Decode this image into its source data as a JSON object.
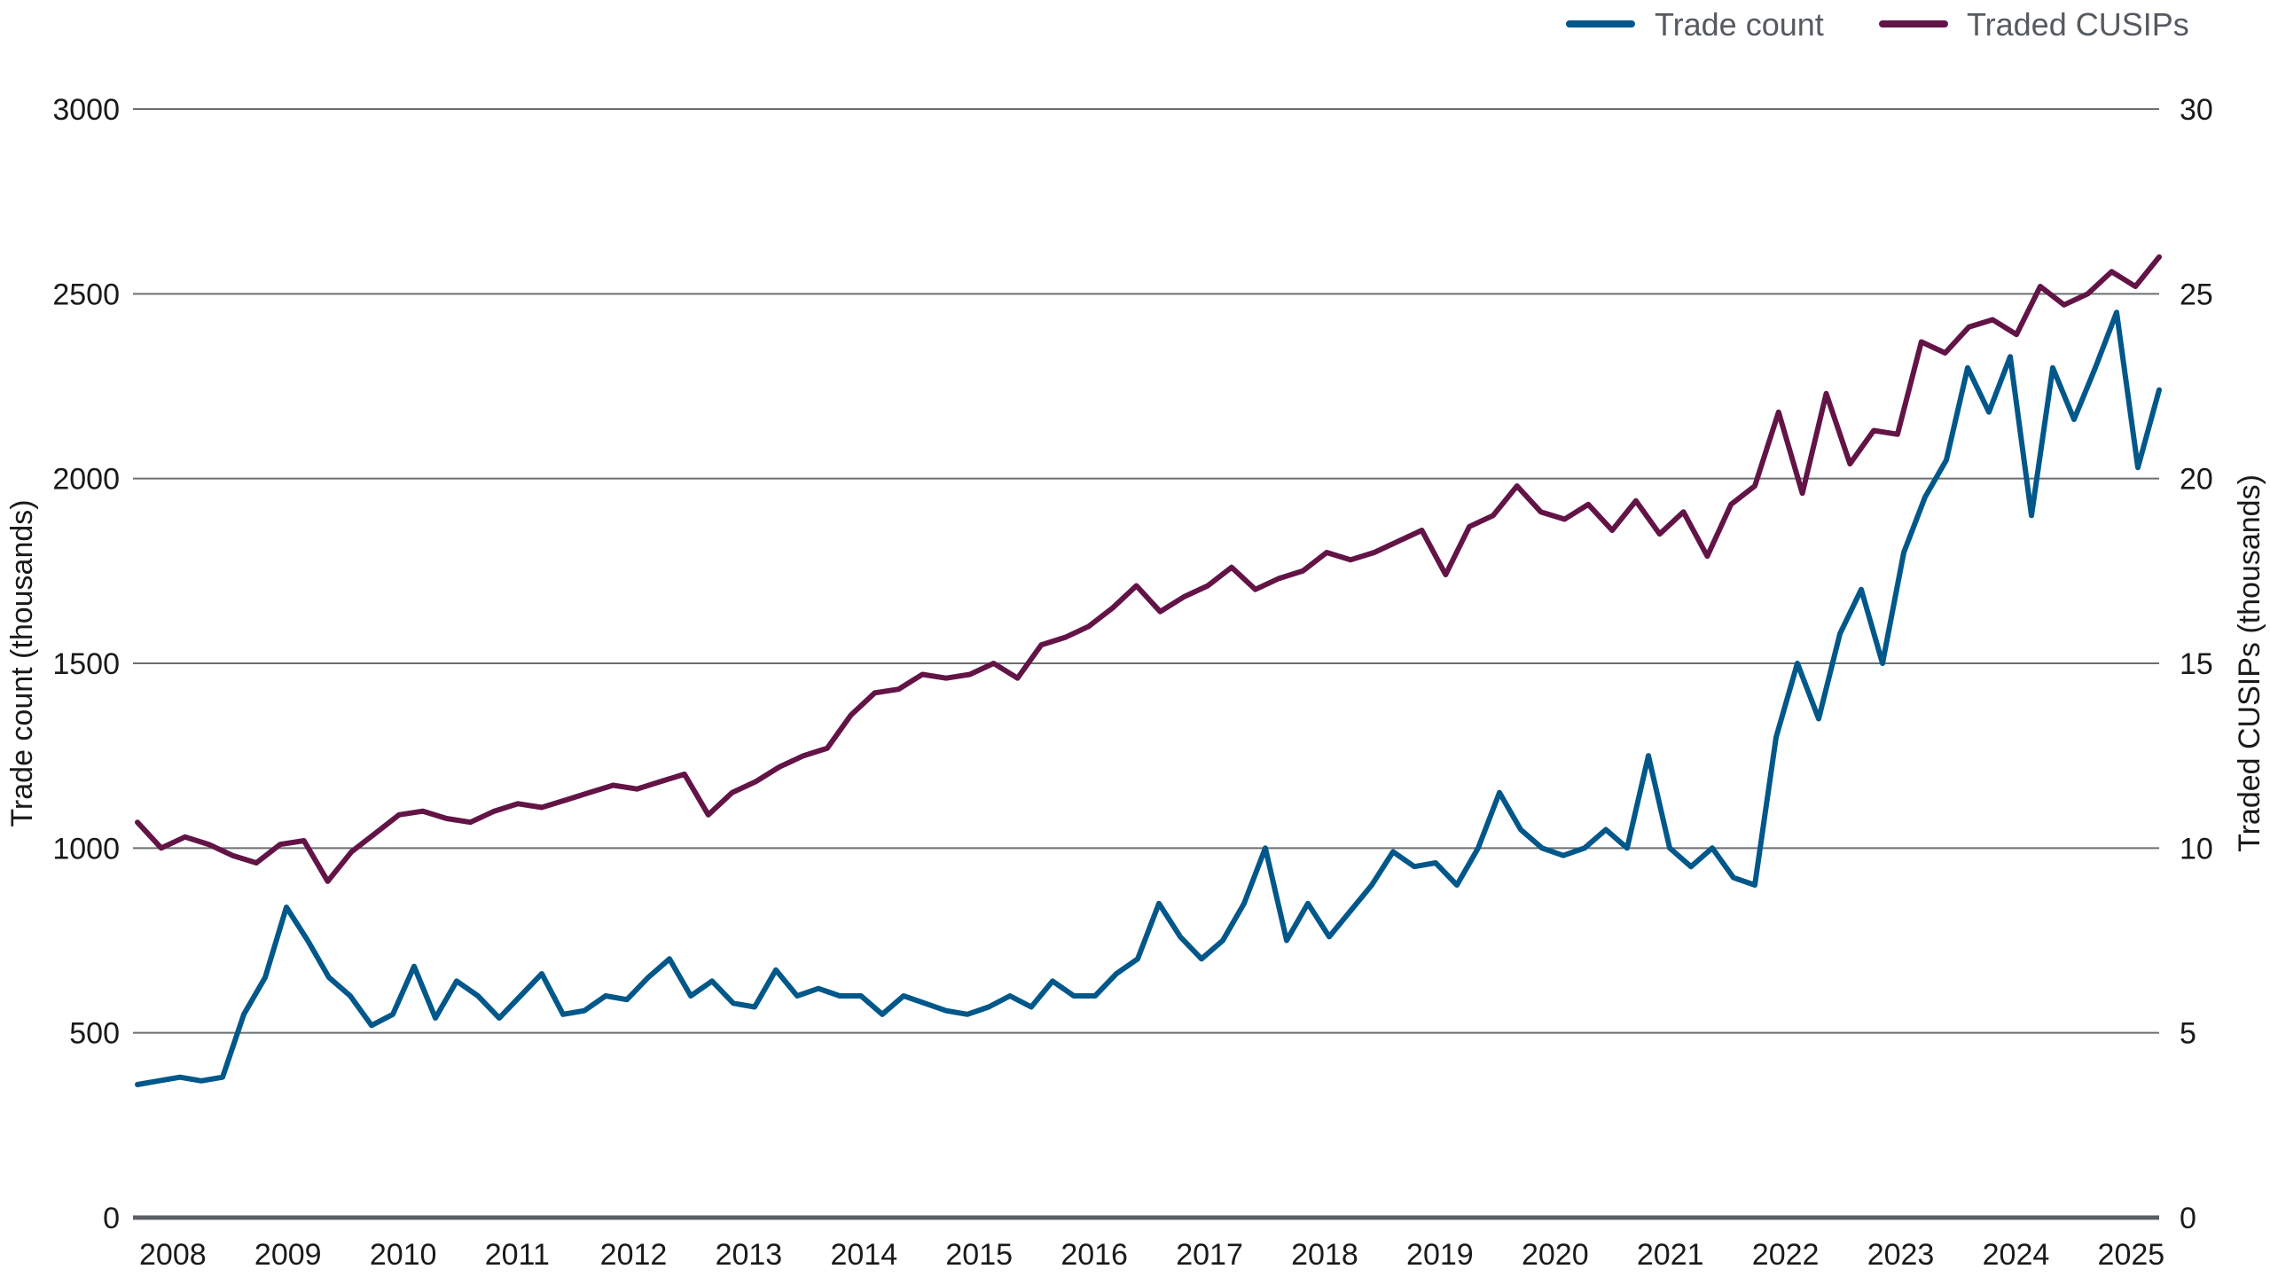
{
  "chart_data": {
    "type": "line",
    "title": "",
    "xlabel": "",
    "ylabel": "Trade count (thousands)",
    "y2label": "Traded CUSIPs (thousands)",
    "ylim": [
      0,
      3000
    ],
    "y2lim": [
      0,
      30
    ],
    "yticks": [
      0,
      500,
      1000,
      1500,
      2000,
      2500,
      3000
    ],
    "y2ticks": [
      0,
      5,
      10,
      15,
      20,
      25,
      30
    ],
    "xticks": [
      "2008",
      "2009",
      "2010",
      "2011",
      "2012",
      "2013",
      "2014",
      "2015",
      "2016",
      "2017",
      "2018",
      "2019",
      "2020",
      "2021",
      "2022",
      "2023",
      "2024",
      "2025"
    ],
    "grid": true,
    "legend_position": "top-right",
    "x_start": 2008.0,
    "x_step": 0.25,
    "series": [
      {
        "name": "Trade count",
        "axis": "left",
        "color": "#00578a",
        "values": [
          360,
          370,
          380,
          370,
          380,
          550,
          650,
          840,
          750,
          650,
          600,
          520,
          550,
          680,
          540,
          640,
          600,
          540,
          600,
          660,
          550,
          560,
          600,
          590,
          650,
          700,
          600,
          640,
          580,
          570,
          670,
          600,
          620,
          600,
          600,
          550,
          600,
          580,
          560,
          550,
          570,
          600,
          570,
          640,
          600,
          600,
          660,
          700,
          850,
          760,
          700,
          750,
          850,
          1000,
          750,
          850,
          760,
          830,
          900,
          990,
          950,
          960,
          900,
          1000,
          1150,
          1050,
          1000,
          980,
          1000,
          1050,
          1000,
          1250,
          1000,
          950,
          1000,
          920,
          900,
          1300,
          1500,
          1350,
          1580,
          1700,
          1500,
          1800,
          1950,
          2050,
          2300,
          2180,
          2330,
          1900,
          2300,
          2160,
          2300,
          2450,
          2030,
          2240
        ]
      },
      {
        "name": "Traded CUSIPs",
        "axis": "right",
        "color": "#631446",
        "values": [
          10.7,
          10.0,
          10.3,
          10.1,
          9.8,
          9.6,
          10.1,
          10.2,
          9.1,
          9.9,
          10.4,
          10.9,
          11.0,
          10.8,
          10.7,
          11.0,
          11.2,
          11.1,
          11.3,
          11.5,
          11.7,
          11.6,
          11.8,
          12.0,
          10.9,
          11.5,
          11.8,
          12.2,
          12.5,
          12.7,
          13.6,
          14.2,
          14.3,
          14.7,
          14.6,
          14.7,
          15.0,
          14.6,
          15.5,
          15.7,
          16.0,
          16.5,
          17.1,
          16.4,
          16.8,
          17.1,
          17.6,
          17.0,
          17.3,
          17.5,
          18.0,
          17.8,
          18.0,
          18.3,
          18.6,
          17.4,
          18.7,
          19.0,
          19.8,
          19.1,
          18.9,
          19.3,
          18.6,
          19.4,
          18.5,
          19.1,
          17.9,
          19.3,
          19.8,
          21.8,
          19.6,
          22.3,
          20.4,
          21.3,
          21.2,
          23.7,
          23.4,
          24.1,
          24.3,
          23.9,
          25.2,
          24.7,
          25.0,
          25.6,
          25.2,
          26.0
        ]
      }
    ]
  },
  "legend": {
    "items": [
      {
        "label": "Trade count",
        "color": "#00578a"
      },
      {
        "label": "Traded CUSIPs",
        "color": "#631446"
      }
    ]
  },
  "axes": {
    "left_title": "Trade count (thousands)",
    "right_title": "Traded CUSIPs (thousands)"
  }
}
